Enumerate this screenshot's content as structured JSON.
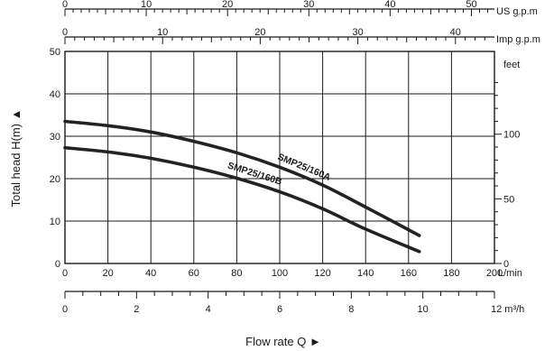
{
  "chart_data": {
    "type": "line",
    "title": "",
    "xlabel": "Flow rate  Q ►",
    "ylabel": "Total  head H(m) ▲",
    "x_unit": "L/min",
    "xlim": [
      0,
      200
    ],
    "ylim": [
      0,
      50
    ],
    "grid": true,
    "x_ticks": [
      0,
      20,
      40,
      60,
      80,
      100,
      120,
      140,
      160,
      180,
      200
    ],
    "y_ticks": [
      0,
      10,
      20,
      30,
      40,
      50
    ],
    "right_axis": {
      "unit": "feet",
      "ticks": [
        {
          "value": 0,
          "label": "0"
        },
        {
          "value": 50,
          "label": "50"
        },
        {
          "value": 100,
          "label": "100"
        }
      ]
    },
    "top_axes": [
      {
        "unit": "US g.p.m",
        "ticks": [
          0,
          10,
          20,
          30,
          40,
          50
        ]
      },
      {
        "unit": "Imp g.p.m",
        "ticks": [
          0,
          10,
          20,
          30,
          40
        ]
      }
    ],
    "bottom_axis": {
      "unit": "12 m³/h",
      "ticks": [
        0,
        2,
        4,
        6,
        8,
        10
      ]
    },
    "series": [
      {
        "name": "SMP25/160A",
        "x": [
          0,
          20,
          40,
          60,
          80,
          100,
          120,
          140,
          165
        ],
        "y": [
          33.5,
          32.5,
          31.0,
          28.8,
          26.1,
          22.7,
          18.5,
          13.3,
          6.6
        ]
      },
      {
        "name": "SMP25/160B",
        "x": [
          0,
          20,
          40,
          60,
          80,
          100,
          120,
          140,
          165
        ],
        "y": [
          27.3,
          26.3,
          24.8,
          22.7,
          20.1,
          16.9,
          12.9,
          8.1,
          2.8
        ]
      }
    ]
  },
  "colors": {
    "curve": "#222222",
    "grid": "#1a1a1a"
  }
}
